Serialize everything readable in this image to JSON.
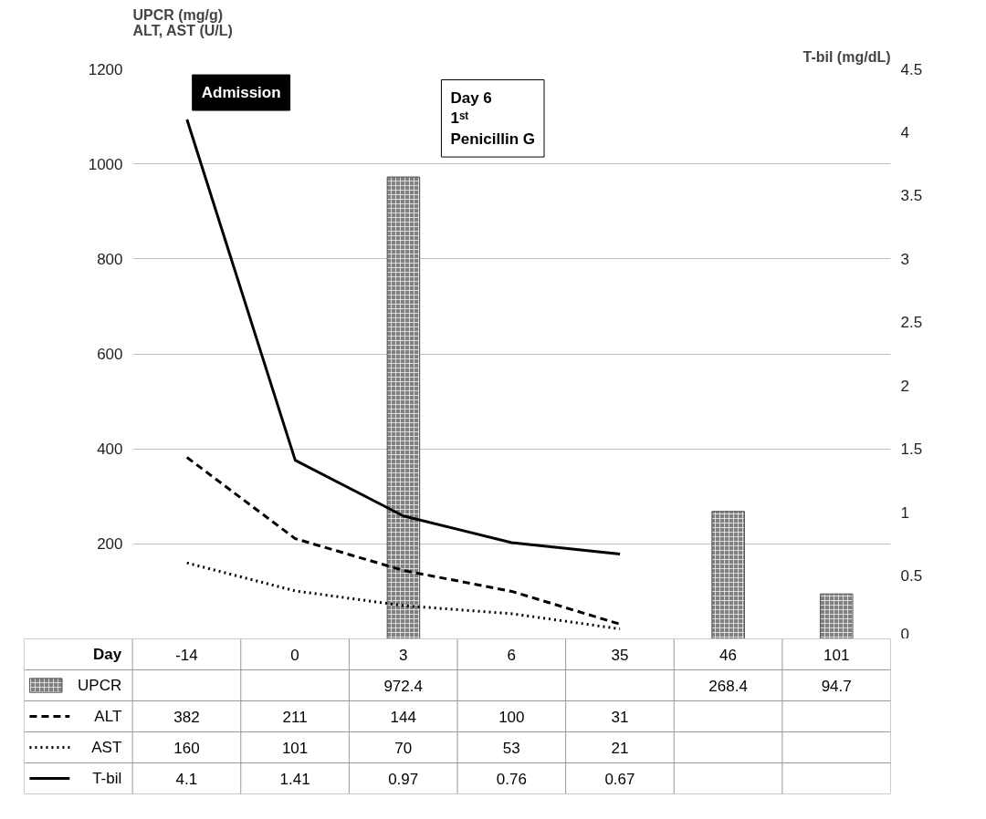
{
  "chart_data": {
    "type": "bar",
    "xlabel": "Day",
    "ylabel": "UPCR (mg/g)\nALT, AST (U/L)",
    "y2label": "T-bil (mg/dL)",
    "categories": [
      "-14",
      "0",
      "3",
      "6",
      "35",
      "46",
      "101"
    ],
    "series": [
      {
        "name": "UPCR",
        "color": "#808080",
        "values": [
          null,
          null,
          972.4,
          null,
          null,
          268.4,
          94.7
        ]
      },
      {
        "name": "ALT",
        "type": "line",
        "line_style": "dashed",
        "color": "#000000",
        "values": [
          382,
          211,
          144,
          100,
          31,
          null,
          null
        ]
      },
      {
        "name": "AST",
        "type": "line",
        "line_style": "dotted",
        "color": "#000000",
        "values": [
          160,
          101,
          70,
          53,
          21,
          null,
          null
        ]
      },
      {
        "name": "T-bil",
        "type": "line",
        "line_style": "solid",
        "axis": "y2",
        "color": "#000000",
        "values": [
          4.1,
          1.41,
          0.97,
          0.76,
          0.67,
          null,
          null
        ]
      }
    ],
    "ylim": [
      0,
      1200
    ],
    "yticks": [
      200,
      400,
      600,
      800,
      1000,
      1200
    ],
    "y2lim": [
      0,
      4.5
    ],
    "y2ticks": [
      0,
      0.5,
      1,
      1.5,
      2,
      2.5,
      3,
      3.5,
      4,
      4.5
    ],
    "grid": "y",
    "legend": "bottom",
    "data_labels": true,
    "annotations": [
      "Admission",
      "Day 6\n1ˢᵗ\nPenicillin G"
    ]
  }
}
